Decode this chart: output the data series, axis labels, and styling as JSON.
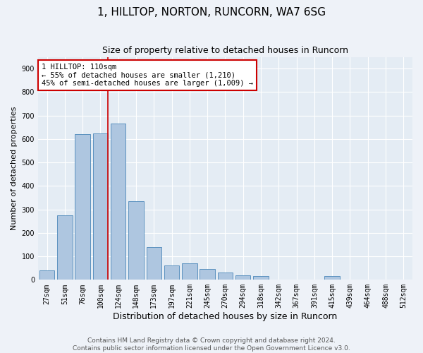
{
  "title": "1, HILLTOP, NORTON, RUNCORN, WA7 6SG",
  "subtitle": "Size of property relative to detached houses in Runcorn",
  "xlabel": "Distribution of detached houses by size in Runcorn",
  "ylabel": "Number of detached properties",
  "bin_labels": [
    "27sqm",
    "51sqm",
    "76sqm",
    "100sqm",
    "124sqm",
    "148sqm",
    "173sqm",
    "197sqm",
    "221sqm",
    "245sqm",
    "270sqm",
    "294sqm",
    "318sqm",
    "342sqm",
    "367sqm",
    "391sqm",
    "415sqm",
    "439sqm",
    "464sqm",
    "488sqm",
    "512sqm"
  ],
  "bar_values": [
    40,
    275,
    620,
    625,
    665,
    335,
    140,
    60,
    70,
    45,
    30,
    20,
    15,
    0,
    0,
    0,
    15,
    0,
    0,
    0,
    0
  ],
  "bar_color": "#aec6e0",
  "bar_edge_color": "#4a86b8",
  "vline_color": "#cc0000",
  "vline_x": 3.41,
  "annotation_text": "1 HILLTOP: 110sqm\n← 55% of detached houses are smaller (1,210)\n45% of semi-detached houses are larger (1,009) →",
  "annotation_box_color": "#ffffff",
  "annotation_box_edge": "#cc0000",
  "annotation_fontsize": 7.5,
  "footer_text": "Contains HM Land Registry data © Crown copyright and database right 2024.\nContains public sector information licensed under the Open Government Licence v3.0.",
  "ylim": [
    0,
    950
  ],
  "yticks": [
    0,
    100,
    200,
    300,
    400,
    500,
    600,
    700,
    800,
    900
  ],
  "title_fontsize": 11,
  "subtitle_fontsize": 9,
  "xlabel_fontsize": 9,
  "ylabel_fontsize": 8,
  "tick_fontsize": 7,
  "footer_fontsize": 6.5,
  "bg_color": "#eef2f8",
  "plot_bg_color": "#e4ecf4"
}
